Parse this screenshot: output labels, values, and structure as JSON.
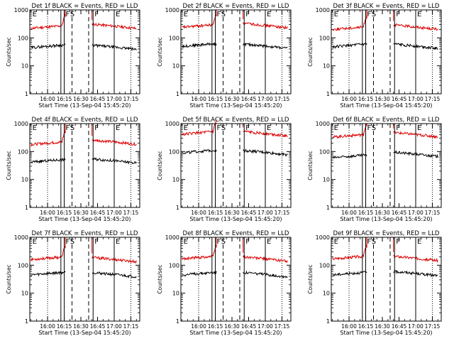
{
  "chart_data": [
    {
      "type": "line",
      "title": "Det 1f BLACK = Events, RED = LLD",
      "xlabel": "Start Time (13-Sep-04 15:45:20)",
      "ylabel": "Counts/sec",
      "yscale": "log",
      "ylim": [
        1,
        1000
      ],
      "y_ticks": [
        1,
        10,
        100,
        1000
      ],
      "y_tick_labels": [
        "1",
        "10",
        "100",
        "1000"
      ],
      "x_ticks": [
        15,
        30,
        45,
        60,
        75,
        90
      ],
      "x_tick_labels": [
        "16:00",
        "16:15",
        "16:30",
        "16:45",
        "17:00",
        "17:15"
      ],
      "xlim": [
        -1,
        98
      ],
      "colors": {
        "events": "#000000",
        "lld": "#dd0000"
      },
      "vlines": [
        {
          "x": 15,
          "style": "dotted"
        },
        {
          "x": 27,
          "style": "solid"
        },
        {
          "x": 30,
          "style": "solid"
        },
        {
          "x": 37,
          "style": "dashed"
        },
        {
          "x": 52,
          "style": "dashed"
        },
        {
          "x": 56,
          "style": "solid"
        },
        {
          "x": 75,
          "style": "solid"
        },
        {
          "x": 90,
          "style": "dotted"
        }
      ],
      "markers": [
        {
          "x": 0,
          "label": "E"
        },
        {
          "x": 30,
          "label": "F"
        },
        {
          "x": 34,
          "label": "S"
        },
        {
          "x": 56,
          "label": "F"
        },
        {
          "x": 75,
          "label": "E"
        }
      ],
      "events": {
        "pre": 45,
        "post": 55
      },
      "lld": {
        "pre": 220,
        "post": 310
      },
      "gap": [
        31,
        55
      ]
    },
    {
      "type": "line",
      "title": "Det 2f BLACK = Events, RED = LLD",
      "xlabel": "Start Time (13-Sep-04 15:45:20)",
      "ylabel": "Counts/sec",
      "yscale": "log",
      "ylim": [
        1,
        1000
      ],
      "y_ticks": [
        1,
        10,
        100,
        1000
      ],
      "y_tick_labels": [
        "1",
        "10",
        "100",
        "1000"
      ],
      "x_ticks": [
        15,
        30,
        45,
        60,
        75,
        90
      ],
      "x_tick_labels": [
        "16:00",
        "16:15",
        "16:30",
        "16:45",
        "17:00",
        "17:15"
      ],
      "xlim": [
        -1,
        98
      ],
      "colors": {
        "events": "#000000",
        "lld": "#dd0000"
      },
      "vlines": [
        {
          "x": 15,
          "style": "dotted"
        },
        {
          "x": 27,
          "style": "solid"
        },
        {
          "x": 30,
          "style": "solid"
        },
        {
          "x": 37,
          "style": "dashed"
        },
        {
          "x": 52,
          "style": "dashed"
        },
        {
          "x": 56,
          "style": "solid"
        },
        {
          "x": 75,
          "style": "solid"
        },
        {
          "x": 90,
          "style": "dotted"
        }
      ],
      "markers": [
        {
          "x": 0,
          "label": "E"
        },
        {
          "x": 30,
          "label": "F"
        },
        {
          "x": 34,
          "label": "S"
        },
        {
          "x": 56,
          "label": "F"
        },
        {
          "x": 75,
          "label": "E"
        }
      ],
      "events": {
        "pre": 50,
        "post": 60
      },
      "lld": {
        "pre": 240,
        "post": 330
      },
      "gap": [
        31,
        55
      ]
    },
    {
      "type": "line",
      "title": "Det 3f BLACK = Events, RED = LLD",
      "xlabel": "Start Time (13-Sep-04 15:45:20)",
      "ylabel": "Counts/sec",
      "yscale": "log",
      "ylim": [
        1,
        1000
      ],
      "y_ticks": [
        1,
        10,
        100,
        1000
      ],
      "y_tick_labels": [
        "1",
        "10",
        "100",
        "1000"
      ],
      "x_ticks": [
        15,
        30,
        45,
        60,
        75,
        90
      ],
      "x_tick_labels": [
        "16:00",
        "16:15",
        "16:30",
        "16:45",
        "17:00",
        "17:15"
      ],
      "xlim": [
        -1,
        98
      ],
      "colors": {
        "events": "#000000",
        "lld": "#dd0000"
      },
      "vlines": [
        {
          "x": 15,
          "style": "dotted"
        },
        {
          "x": 27,
          "style": "solid"
        },
        {
          "x": 30,
          "style": "solid"
        },
        {
          "x": 37,
          "style": "dashed"
        },
        {
          "x": 52,
          "style": "dashed"
        },
        {
          "x": 56,
          "style": "solid"
        },
        {
          "x": 75,
          "style": "solid"
        },
        {
          "x": 90,
          "style": "dotted"
        }
      ],
      "markers": [
        {
          "x": 0,
          "label": "E"
        },
        {
          "x": 30,
          "label": "F"
        },
        {
          "x": 34,
          "label": "S"
        },
        {
          "x": 56,
          "label": "F"
        },
        {
          "x": 75,
          "label": "E"
        }
      ],
      "events": {
        "pre": 48,
        "post": 60
      },
      "lld": {
        "pre": 200,
        "post": 290
      },
      "gap": [
        31,
        55
      ]
    },
    {
      "type": "line",
      "title": "Det 4f BLACK = Events, RED = LLD",
      "xlabel": "Start Time (13-Sep-04 15:45:20)",
      "ylabel": "Counts/sec",
      "yscale": "log",
      "ylim": [
        1,
        1000
      ],
      "y_ticks": [
        1,
        10,
        100,
        1000
      ],
      "y_tick_labels": [
        "1",
        "10",
        "100",
        "1000"
      ],
      "x_ticks": [
        15,
        30,
        45,
        60,
        75,
        90
      ],
      "x_tick_labels": [
        "16:00",
        "16:15",
        "16:30",
        "16:45",
        "17:00",
        "17:15"
      ],
      "xlim": [
        -1,
        98
      ],
      "colors": {
        "events": "#000000",
        "lld": "#dd0000"
      },
      "vlines": [
        {
          "x": 15,
          "style": "dotted"
        },
        {
          "x": 27,
          "style": "solid"
        },
        {
          "x": 30,
          "style": "solid"
        },
        {
          "x": 37,
          "style": "dashed"
        },
        {
          "x": 52,
          "style": "dashed"
        },
        {
          "x": 56,
          "style": "solid"
        },
        {
          "x": 75,
          "style": "solid"
        },
        {
          "x": 90,
          "style": "dotted"
        }
      ],
      "markers": [
        {
          "x": 0,
          "label": "E"
        },
        {
          "x": 30,
          "label": "F"
        },
        {
          "x": 34,
          "label": "S"
        },
        {
          "x": 56,
          "label": "F"
        },
        {
          "x": 75,
          "label": "E"
        }
      ],
      "events": {
        "pre": 42,
        "post": 55
      },
      "lld": {
        "pre": 180,
        "post": 260
      },
      "gap": [
        31,
        55
      ]
    },
    {
      "type": "line",
      "title": "Det 5f BLACK = Events, RED = LLD",
      "xlabel": "Start Time (13-Sep-04 15:45:20)",
      "ylabel": "Counts/sec",
      "yscale": "log",
      "ylim": [
        1,
        1000
      ],
      "y_ticks": [
        1,
        10,
        100,
        1000
      ],
      "y_tick_labels": [
        "1",
        "10",
        "100",
        "1000"
      ],
      "x_ticks": [
        15,
        30,
        45,
        60,
        75,
        90
      ],
      "x_tick_labels": [
        "16:00",
        "16:15",
        "16:30",
        "16:45",
        "17:00",
        "17:15"
      ],
      "xlim": [
        -1,
        98
      ],
      "colors": {
        "events": "#000000",
        "lld": "#dd0000"
      },
      "vlines": [
        {
          "x": 15,
          "style": "dotted"
        },
        {
          "x": 27,
          "style": "solid"
        },
        {
          "x": 30,
          "style": "solid"
        },
        {
          "x": 37,
          "style": "dashed"
        },
        {
          "x": 52,
          "style": "dashed"
        },
        {
          "x": 56,
          "style": "solid"
        },
        {
          "x": 75,
          "style": "solid"
        },
        {
          "x": 90,
          "style": "dotted"
        }
      ],
      "markers": [
        {
          "x": 0,
          "label": "E"
        },
        {
          "x": 30,
          "label": "F"
        },
        {
          "x": 34,
          "label": "S"
        },
        {
          "x": 56,
          "label": "F"
        },
        {
          "x": 75,
          "label": "E"
        }
      ],
      "events": {
        "pre": 90,
        "post": 110
      },
      "lld": {
        "pre": 420,
        "post": 520
      },
      "gap": [
        31,
        55
      ]
    },
    {
      "type": "line",
      "title": "Det 6f BLACK = Events, RED = LLD",
      "xlabel": "Start Time (13-Sep-04 15:45:20)",
      "ylabel": "Counts/sec",
      "yscale": "log",
      "ylim": [
        1,
        1000
      ],
      "y_ticks": [
        1,
        10,
        100,
        1000
      ],
      "y_tick_labels": [
        "1",
        "10",
        "100",
        "1000"
      ],
      "x_ticks": [
        15,
        30,
        45,
        60,
        75,
        90
      ],
      "x_tick_labels": [
        "16:00",
        "16:15",
        "16:30",
        "16:45",
        "17:00",
        "17:15"
      ],
      "xlim": [
        -1,
        98
      ],
      "colors": {
        "events": "#000000",
        "lld": "#dd0000"
      },
      "vlines": [
        {
          "x": 15,
          "style": "dotted"
        },
        {
          "x": 27,
          "style": "solid"
        },
        {
          "x": 30,
          "style": "solid"
        },
        {
          "x": 37,
          "style": "dashed"
        },
        {
          "x": 52,
          "style": "dashed"
        },
        {
          "x": 56,
          "style": "solid"
        },
        {
          "x": 75,
          "style": "solid"
        },
        {
          "x": 90,
          "style": "dotted"
        }
      ],
      "markers": [
        {
          "x": 0,
          "label": "E"
        },
        {
          "x": 30,
          "label": "F"
        },
        {
          "x": 34,
          "label": "S"
        },
        {
          "x": 56,
          "label": "F"
        },
        {
          "x": 75,
          "label": "E"
        }
      ],
      "events": {
        "pre": 60,
        "post": 95
      },
      "lld": {
        "pre": 330,
        "post": 480
      },
      "gap": [
        31,
        55
      ]
    },
    {
      "type": "line",
      "title": "Det 7f BLACK = Events, RED = LLD",
      "xlabel": "Start Time (13-Sep-04 15:45:20)",
      "ylabel": "Counts/sec",
      "yscale": "log",
      "ylim": [
        1,
        1000
      ],
      "y_ticks": [
        1,
        10,
        100,
        1000
      ],
      "y_tick_labels": [
        "1",
        "10",
        "100",
        "1000"
      ],
      "x_ticks": [
        15,
        30,
        45,
        60,
        75,
        90
      ],
      "x_tick_labels": [
        "16:00",
        "16:15",
        "16:30",
        "16:45",
        "17:00",
        "17:15"
      ],
      "xlim": [
        -1,
        98
      ],
      "colors": {
        "events": "#000000",
        "lld": "#dd0000"
      },
      "vlines": [
        {
          "x": 15,
          "style": "dotted"
        },
        {
          "x": 27,
          "style": "solid"
        },
        {
          "x": 30,
          "style": "solid"
        },
        {
          "x": 37,
          "style": "dashed"
        },
        {
          "x": 52,
          "style": "dashed"
        },
        {
          "x": 56,
          "style": "solid"
        },
        {
          "x": 75,
          "style": "solid"
        },
        {
          "x": 90,
          "style": "dotted"
        }
      ],
      "markers": [
        {
          "x": 0,
          "label": "E"
        },
        {
          "x": 30,
          "label": "F"
        },
        {
          "x": 34,
          "label": "S"
        },
        {
          "x": 56,
          "label": "F"
        },
        {
          "x": 75,
          "label": "E"
        }
      ],
      "events": {
        "pre": 45,
        "post": 55
      },
      "lld": {
        "pre": 160,
        "post": 190
      },
      "gap": [
        31,
        55
      ]
    },
    {
      "type": "line",
      "title": "Det 8f BLACK = Events, RED = LLD",
      "xlabel": "Start Time (13-Sep-04 15:45:20)",
      "ylabel": "Counts/sec",
      "yscale": "log",
      "ylim": [
        1,
        1000
      ],
      "y_ticks": [
        1,
        10,
        100,
        1000
      ],
      "y_tick_labels": [
        "1",
        "10",
        "100",
        "1000"
      ],
      "x_ticks": [
        15,
        30,
        45,
        60,
        75,
        90
      ],
      "x_tick_labels": [
        "16:00",
        "16:15",
        "16:30",
        "16:45",
        "17:00",
        "17:15"
      ],
      "xlim": [
        -1,
        98
      ],
      "colors": {
        "events": "#000000",
        "lld": "#dd0000"
      },
      "vlines": [
        {
          "x": 15,
          "style": "dotted"
        },
        {
          "x": 27,
          "style": "solid"
        },
        {
          "x": 30,
          "style": "solid"
        },
        {
          "x": 37,
          "style": "dashed"
        },
        {
          "x": 52,
          "style": "dashed"
        },
        {
          "x": 56,
          "style": "solid"
        },
        {
          "x": 75,
          "style": "solid"
        },
        {
          "x": 90,
          "style": "dotted"
        }
      ],
      "markers": [
        {
          "x": 0,
          "label": "E"
        },
        {
          "x": 30,
          "label": "F"
        },
        {
          "x": 34,
          "label": "S"
        },
        {
          "x": 56,
          "label": "F"
        },
        {
          "x": 75,
          "label": "E"
        }
      ],
      "events": {
        "pre": 45,
        "post": 55
      },
      "lld": {
        "pre": 170,
        "post": 200
      },
      "gap": [
        31,
        55
      ]
    },
    {
      "type": "line",
      "title": "Det 9f BLACK = Events, RED = LLD",
      "xlabel": "Start Time (13-Sep-04 15:45:20)",
      "ylabel": "Counts/sec",
      "yscale": "log",
      "ylim": [
        1,
        1000
      ],
      "y_ticks": [
        1,
        10,
        100,
        1000
      ],
      "y_tick_labels": [
        "1",
        "10",
        "100",
        "1000"
      ],
      "x_ticks": [
        15,
        30,
        45,
        60,
        75,
        90
      ],
      "x_tick_labels": [
        "16:00",
        "16:15",
        "16:30",
        "16:45",
        "17:00",
        "17:15"
      ],
      "xlim": [
        -1,
        98
      ],
      "colors": {
        "events": "#000000",
        "lld": "#dd0000"
      },
      "vlines": [
        {
          "x": 15,
          "style": "dotted"
        },
        {
          "x": 27,
          "style": "solid"
        },
        {
          "x": 30,
          "style": "solid"
        },
        {
          "x": 37,
          "style": "dashed"
        },
        {
          "x": 52,
          "style": "dashed"
        },
        {
          "x": 56,
          "style": "solid"
        },
        {
          "x": 75,
          "style": "solid"
        },
        {
          "x": 90,
          "style": "dotted"
        }
      ],
      "markers": [
        {
          "x": 0,
          "label": "E"
        },
        {
          "x": 30,
          "label": "F"
        },
        {
          "x": 34,
          "label": "S"
        },
        {
          "x": 56,
          "label": "F"
        },
        {
          "x": 75,
          "label": "E"
        }
      ],
      "events": {
        "pre": 45,
        "post": 60
      },
      "lld": {
        "pre": 170,
        "post": 210
      },
      "gap": [
        31,
        55
      ]
    }
  ]
}
